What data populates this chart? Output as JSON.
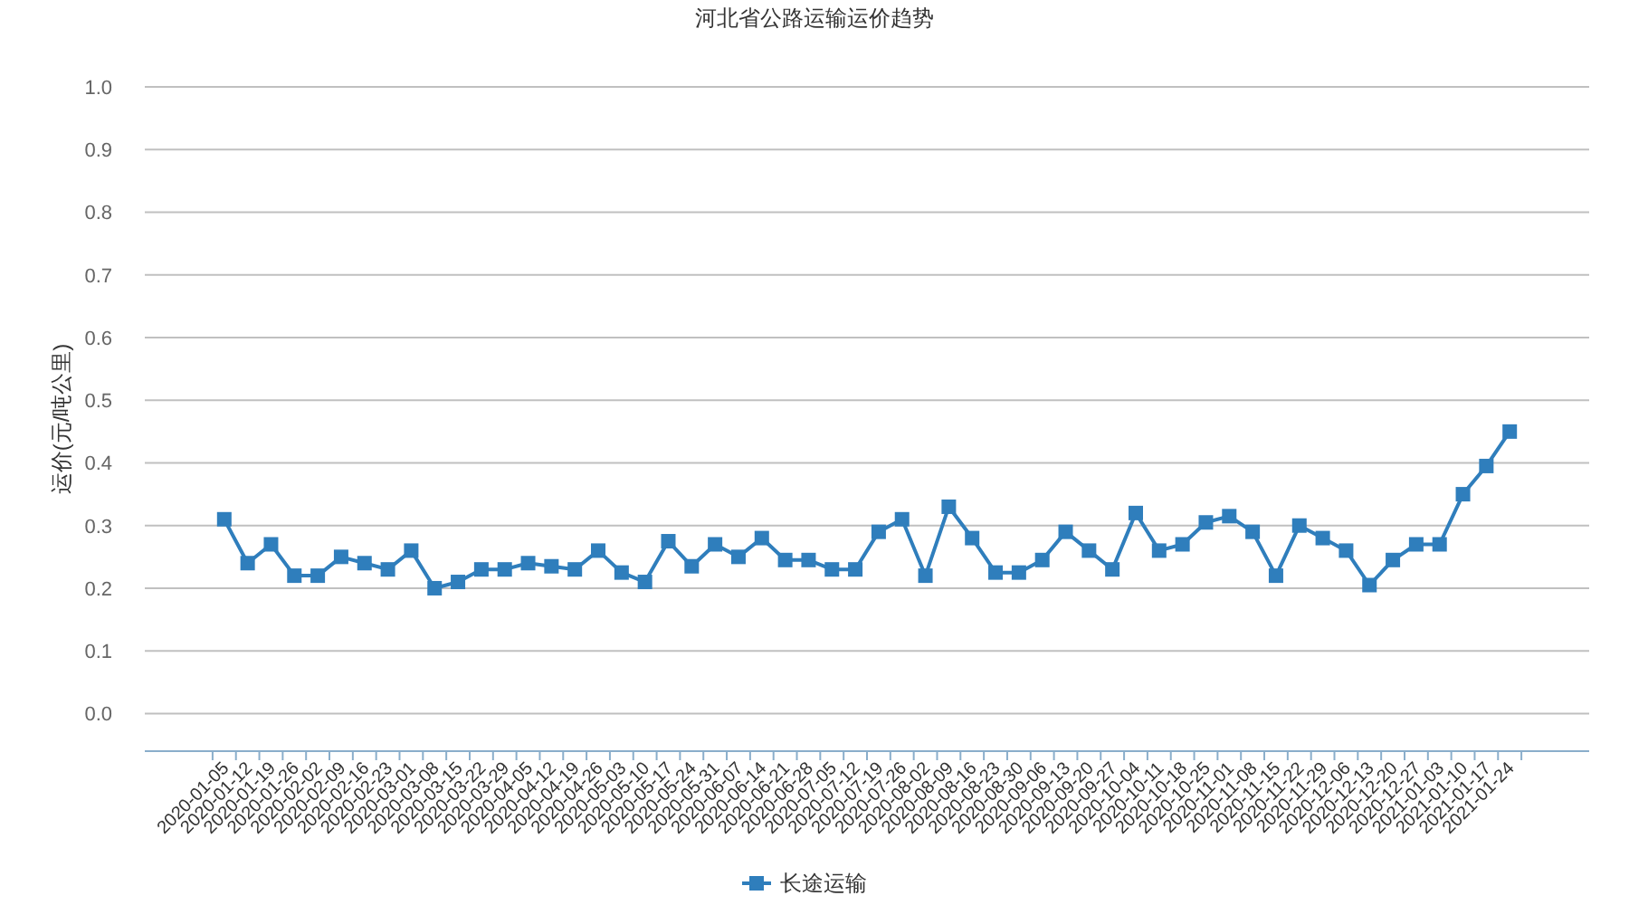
{
  "chart_data": {
    "type": "line",
    "title": "河北省公路运输运价趋势",
    "ylabel": "运价(元/吨公里)",
    "categories": [
      "2020-01-05",
      "2020-01-12",
      "2020-01-19",
      "2020-01-26",
      "2020-02-02",
      "2020-02-09",
      "2020-02-16",
      "2020-02-23",
      "2020-03-01",
      "2020-03-08",
      "2020-03-15",
      "2020-03-22",
      "2020-03-29",
      "2020-04-05",
      "2020-04-12",
      "2020-04-19",
      "2020-04-26",
      "2020-05-03",
      "2020-05-10",
      "2020-05-17",
      "2020-05-24",
      "2020-05-31",
      "2020-06-07",
      "2020-06-14",
      "2020-06-21",
      "2020-06-28",
      "2020-07-05",
      "2020-07-12",
      "2020-07-19",
      "2020-07-26",
      "2020-08-02",
      "2020-08-09",
      "2020-08-16",
      "2020-08-23",
      "2020-08-30",
      "2020-09-06",
      "2020-09-13",
      "2020-09-20",
      "2020-09-27",
      "2020-10-04",
      "2020-10-11",
      "2020-10-18",
      "2020-10-25",
      "2020-11-01",
      "2020-11-08",
      "2020-11-15",
      "2020-11-22",
      "2020-11-29",
      "2020-12-06",
      "2020-12-13",
      "2020-12-20",
      "2020-12-27",
      "2021-01-03",
      "2021-01-10",
      "2021-01-17",
      "2021-01-24"
    ],
    "series": [
      {
        "name": "长途运输",
        "color": "#2f7ebc",
        "values": [
          0.31,
          0.24,
          0.27,
          0.22,
          0.22,
          0.25,
          0.24,
          0.23,
          0.26,
          0.2,
          0.21,
          0.23,
          0.23,
          0.24,
          0.235,
          0.23,
          0.26,
          0.225,
          0.21,
          0.275,
          0.235,
          0.27,
          0.25,
          0.28,
          0.245,
          0.245,
          0.23,
          0.23,
          0.29,
          0.31,
          0.22,
          0.33,
          0.28,
          0.225,
          0.225,
          0.245,
          0.29,
          0.26,
          0.23,
          0.32,
          0.26,
          0.27,
          0.305,
          0.315,
          0.29,
          0.22,
          0.3,
          0.28,
          0.26,
          0.205,
          0.245,
          0.27,
          0.27,
          0.35,
          0.395,
          0.45
        ]
      }
    ],
    "ylim": [
      -0.06,
      1.0
    ],
    "yticks": [
      {
        "value": 0,
        "label": "0.0"
      },
      {
        "value": 0.1,
        "label": "0.1"
      },
      {
        "value": 0.2,
        "label": "0.2"
      },
      {
        "value": 0.3,
        "label": "0.3"
      },
      {
        "value": 0.4,
        "label": "0.4"
      },
      {
        "value": 0.5,
        "label": "0.5"
      },
      {
        "value": 0.6,
        "label": "0.6"
      },
      {
        "value": 0.7,
        "label": "0.7"
      },
      {
        "value": 0.8,
        "label": "0.8"
      },
      {
        "value": 0.9,
        "label": "0.9"
      },
      {
        "value": 1.0,
        "label": "1.0"
      }
    ],
    "grid": "y",
    "legend": "bottom",
    "marker": "square",
    "line_style": "solid"
  }
}
